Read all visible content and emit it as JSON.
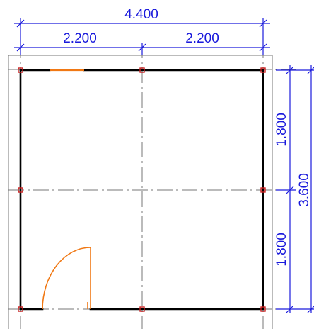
{
  "dimensions": {
    "top_total": "4.400",
    "top_left": "2.200",
    "top_right": "2.200",
    "right_upper": "1.800",
    "right_lower": "1.800",
    "right_total": "3.600"
  },
  "colors": {
    "wall": "#000000",
    "dimension": "#1a1adc",
    "axis": "#6e6e6e",
    "opening": "#f07814",
    "column_marker": "#c81e1e"
  },
  "elements": {
    "window": "window-opening",
    "door": "door-swing"
  }
}
